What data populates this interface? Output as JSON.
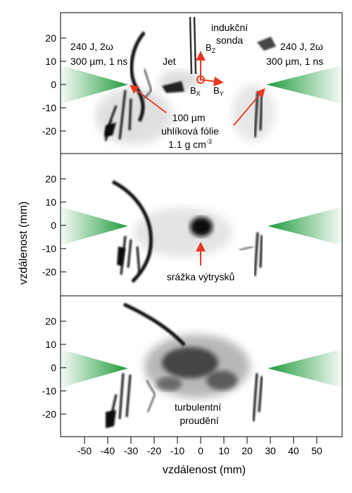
{
  "panels": [
    {
      "labels": {
        "laser_left": [
          "240 J, 2ω",
          "300 µm, 1 ns"
        ],
        "laser_right": [
          "240 J, 2ω",
          "300 µm, 1 ns"
        ],
        "probe": [
          "indukční",
          "sonda"
        ],
        "jet": "Jet",
        "bz": "B",
        "bz_sub": "Z",
        "bx": "B",
        "bx_sub": "X",
        "by": "B",
        "by_sub": "Y",
        "foil": [
          "100 µm",
          "uhlíková fólie",
          "1.1 g cm",
          "-3"
        ]
      }
    },
    {
      "labels": {
        "annotation": "srážka výtrysků"
      }
    },
    {
      "labels": {
        "annotation": [
          "turbulentní",
          "proudění"
        ]
      }
    }
  ],
  "axes": {
    "y_label": "vzdálenost (mm)",
    "x_label": "vzdálenost (mm)",
    "y_ticks": [
      "20",
      "10",
      "0",
      "-10",
      "-20"
    ],
    "y_tick_values": [
      20,
      10,
      0,
      -10,
      -20
    ],
    "x_ticks": [
      "-50",
      "-40",
      "-30",
      "-20",
      "-10",
      "0",
      "10",
      "20",
      "30",
      "40",
      "50"
    ],
    "x_tick_values": [
      -50,
      -40,
      -30,
      -20,
      -10,
      0,
      10,
      20,
      30,
      40,
      50
    ]
  },
  "colors": {
    "laser": "#1f9a3a",
    "arrow": "#e8381f",
    "ink": "#111111"
  }
}
